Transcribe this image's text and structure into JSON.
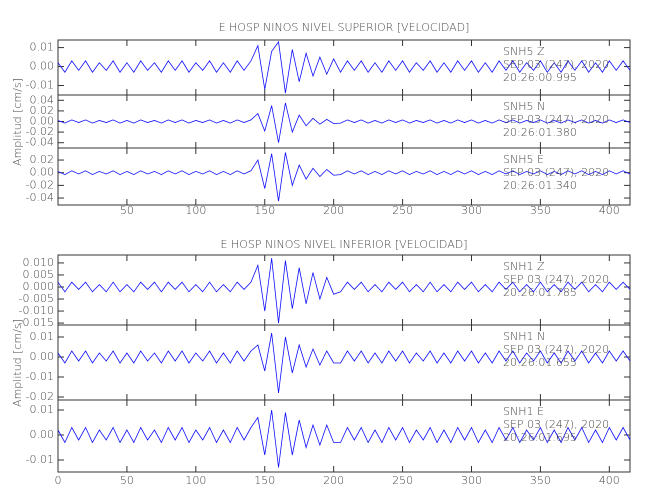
{
  "chart_data": [
    {
      "type": "line",
      "title": "E HOSP NINOS NIVEL SUPERIOR [VELOCIDAD]",
      "y_label": "Amplitud [cm/s]",
      "x": [
        0,
        5,
        10,
        15,
        20,
        25,
        30,
        35,
        40,
        45,
        50,
        55,
        60,
        65,
        70,
        75,
        80,
        85,
        90,
        95,
        100,
        105,
        110,
        115,
        120,
        125,
        130,
        135,
        140,
        145,
        150,
        155,
        160,
        165,
        170,
        175,
        180,
        185,
        190,
        195,
        200,
        205,
        210,
        215,
        220,
        225,
        230,
        235,
        240,
        245,
        250,
        255,
        260,
        265,
        270,
        275,
        280,
        285,
        290,
        295,
        300,
        305,
        310,
        315,
        320,
        325,
        330,
        335,
        340,
        345,
        350,
        355,
        360,
        365,
        370,
        375,
        380,
        385,
        390,
        395,
        400,
        405,
        410,
        415
      ],
      "xlim": [
        0,
        415
      ],
      "xticks": [
        50,
        100,
        150,
        200,
        250,
        300,
        350,
        400
      ],
      "panels": [
        {
          "labels": [
            "SNH5   Z",
            "SEP 03 (247), 2020",
            "20:26:00.995"
          ],
          "color": "#1010ff",
          "ylim": [
            -0.015,
            0.014
          ],
          "yticks": [
            0.01,
            {
              "value": 0,
              "label": "0.00"
            },
            -0.01
          ],
          "values": [
            0.002,
            -0.003,
            0.003,
            -0.002,
            0.003,
            -0.003,
            0.002,
            -0.002,
            0.003,
            -0.003,
            0.002,
            -0.003,
            0.003,
            -0.002,
            0.002,
            -0.003,
            0.003,
            -0.002,
            0.003,
            -0.003,
            0.002,
            -0.002,
            0.003,
            -0.003,
            0.002,
            -0.003,
            0.003,
            -0.002,
            0.003,
            0.011,
            -0.012,
            0.008,
            0.013,
            -0.014,
            0.009,
            -0.008,
            0.007,
            -0.005,
            0.005,
            -0.004,
            0.004,
            -0.003,
            0.003,
            -0.002,
            0.003,
            -0.003,
            0.002,
            -0.003,
            0.003,
            -0.002,
            0.003,
            -0.003,
            0.002,
            -0.002,
            0.003,
            -0.003,
            0.002,
            -0.003,
            0.003,
            -0.002,
            0.003,
            -0.003,
            0.002,
            -0.003,
            0.003,
            -0.002,
            0.003,
            -0.003,
            0.002,
            -0.002,
            0.003,
            -0.003,
            0.002,
            -0.003,
            0.003,
            -0.002,
            0.003,
            -0.003,
            0.002,
            -0.003,
            0.003,
            -0.002,
            0.003,
            -0.002
          ]
        },
        {
          "labels": [
            "SNH5   N",
            "SEP 03 (247), 2020",
            "20:26:01.380"
          ],
          "color": "#1010ff",
          "ylim": [
            -0.05,
            0.05
          ],
          "yticks": [
            0.04,
            0.02,
            {
              "value": 0,
              "label": "0.00"
            },
            -0.02,
            -0.04
          ],
          "values": [
            0.002,
            -0.003,
            0.003,
            -0.002,
            0.003,
            -0.003,
            0.002,
            -0.002,
            0.003,
            -0.003,
            0.002,
            -0.003,
            0.003,
            -0.002,
            0.002,
            -0.003,
            0.003,
            -0.002,
            0.003,
            -0.003,
            0.002,
            -0.002,
            0.003,
            -0.003,
            0.002,
            -0.003,
            0.003,
            -0.002,
            0.003,
            0.015,
            -0.018,
            0.03,
            -0.04,
            0.035,
            -0.02,
            0.012,
            -0.008,
            0.006,
            -0.005,
            0.004,
            -0.004,
            -0.003,
            0.003,
            -0.002,
            0.003,
            -0.003,
            0.002,
            -0.003,
            0.003,
            -0.002,
            0.003,
            -0.003,
            0.002,
            -0.002,
            0.003,
            -0.003,
            0.002,
            -0.003,
            0.003,
            -0.002,
            0.003,
            -0.003,
            0.002,
            -0.003,
            0.003,
            -0.002,
            0.003,
            -0.003,
            0.002,
            -0.002,
            0.003,
            -0.003,
            0.002,
            -0.003,
            0.003,
            -0.002,
            0.003,
            -0.003,
            0.002,
            -0.003,
            0.003,
            -0.002,
            0.003,
            -0.002
          ]
        },
        {
          "labels": [
            "SNH5   E",
            "SEP 03 (247), 2020",
            "20:26:01.340"
          ],
          "color": "#1010ff",
          "ylim": [
            -0.051,
            0.039
          ],
          "yticks": [
            0.02,
            {
              "value": 0,
              "label": "0.00"
            },
            -0.02,
            -0.04
          ],
          "values": [
            0.002,
            -0.003,
            0.003,
            -0.002,
            0.003,
            -0.003,
            0.002,
            -0.002,
            0.003,
            -0.003,
            0.002,
            -0.003,
            0.003,
            -0.002,
            0.002,
            -0.003,
            0.003,
            -0.002,
            0.003,
            -0.003,
            0.002,
            -0.002,
            0.003,
            -0.003,
            0.002,
            -0.003,
            0.003,
            -0.002,
            0.003,
            0.02,
            -0.025,
            0.03,
            -0.045,
            0.032,
            -0.02,
            0.012,
            -0.01,
            0.007,
            -0.006,
            0.005,
            -0.004,
            -0.003,
            0.003,
            -0.002,
            0.003,
            -0.003,
            0.002,
            -0.003,
            0.003,
            -0.002,
            0.003,
            -0.003,
            0.002,
            -0.002,
            0.003,
            -0.003,
            0.002,
            -0.003,
            0.003,
            -0.002,
            0.003,
            -0.003,
            0.002,
            -0.003,
            0.003,
            -0.002,
            0.003,
            -0.003,
            0.002,
            -0.002,
            0.003,
            -0.003,
            0.002,
            -0.003,
            0.003,
            -0.002,
            0.003,
            -0.003,
            0.002,
            -0.003,
            0.003,
            -0.002,
            0.003,
            -0.002
          ]
        }
      ]
    },
    {
      "type": "line",
      "title": "E HOSP NINOS NIVEL INFERIOR [VELOCIDAD]",
      "y_label": "Amplitud [cm/s]",
      "x": [
        0,
        5,
        10,
        15,
        20,
        25,
        30,
        35,
        40,
        45,
        50,
        55,
        60,
        65,
        70,
        75,
        80,
        85,
        90,
        95,
        100,
        105,
        110,
        115,
        120,
        125,
        130,
        135,
        140,
        145,
        150,
        155,
        160,
        165,
        170,
        175,
        180,
        185,
        190,
        195,
        200,
        205,
        210,
        215,
        220,
        225,
        230,
        235,
        240,
        245,
        250,
        255,
        260,
        265,
        270,
        275,
        280,
        285,
        290,
        295,
        300,
        305,
        310,
        315,
        320,
        325,
        330,
        335,
        340,
        345,
        350,
        355,
        360,
        365,
        370,
        375,
        380,
        385,
        390,
        395,
        400,
        405,
        410,
        415
      ],
      "xlim": [
        0,
        415
      ],
      "xticks": [
        0,
        50,
        100,
        150,
        200,
        250,
        300,
        350,
        400
      ],
      "panels": [
        {
          "labels": [
            "SNH1   Z",
            "SEP 03 (247), 2020",
            "20:26:01.785"
          ],
          "color": "#1010ff",
          "ylim": [
            -0.0158,
            0.0133
          ],
          "yticks": [
            {
              "value": 0.01,
              "label": "0.010"
            },
            0.005,
            {
              "value": 0,
              "label": "0.000"
            },
            -0.005,
            {
              "value": -0.01,
              "label": "-0.010"
            },
            -0.015
          ],
          "values": [
            0.002,
            -0.002,
            0.002,
            -0.001,
            0.002,
            -0.002,
            0.001,
            -0.002,
            0.002,
            -0.002,
            0.001,
            -0.002,
            0.002,
            -0.001,
            0.002,
            -0.002,
            0.002,
            -0.001,
            0.002,
            -0.002,
            0.001,
            -0.002,
            0.002,
            -0.002,
            0.001,
            -0.002,
            0.002,
            -0.001,
            0.002,
            0.009,
            -0.01,
            0.012,
            -0.015,
            0.011,
            -0.009,
            0.008,
            -0.007,
            0.006,
            -0.005,
            0.004,
            -0.003,
            -0.002,
            0.002,
            -0.001,
            0.002,
            -0.002,
            0.001,
            -0.002,
            0.002,
            -0.001,
            0.002,
            -0.002,
            0.001,
            -0.002,
            0.002,
            -0.002,
            0.001,
            -0.002,
            0.002,
            -0.001,
            0.002,
            -0.002,
            0.001,
            -0.002,
            0.002,
            -0.001,
            0.002,
            -0.002,
            0.001,
            -0.002,
            0.002,
            -0.002,
            0.001,
            -0.002,
            0.002,
            -0.001,
            0.002,
            -0.002,
            0.001,
            -0.002,
            0.002,
            -0.001,
            0.002,
            -0.001
          ]
        },
        {
          "labels": [
            "SNH1   N",
            "SEP 03 (247), 2020",
            "20:26:01.655"
          ],
          "color": "#1010ff",
          "ylim": [
            -0.0215,
            0.016
          ],
          "yticks": [
            0.01,
            {
              "value": 0,
              "label": "0.00"
            },
            -0.01,
            -0.02
          ],
          "values": [
            0.002,
            -0.003,
            0.003,
            -0.002,
            0.003,
            -0.003,
            0.002,
            -0.002,
            0.003,
            -0.003,
            0.002,
            -0.003,
            0.003,
            -0.002,
            0.002,
            -0.003,
            0.003,
            -0.002,
            0.003,
            -0.003,
            0.002,
            -0.002,
            0.003,
            -0.003,
            0.002,
            -0.003,
            0.003,
            -0.002,
            0.003,
            0.006,
            -0.007,
            0.012,
            -0.018,
            0.01,
            -0.008,
            0.006,
            -0.005,
            0.004,
            -0.004,
            0.003,
            -0.003,
            -0.003,
            0.003,
            -0.002,
            0.003,
            -0.003,
            0.002,
            -0.003,
            0.003,
            -0.002,
            0.003,
            -0.003,
            0.002,
            -0.002,
            0.003,
            -0.003,
            0.002,
            -0.003,
            0.003,
            -0.002,
            0.003,
            -0.003,
            0.002,
            -0.003,
            0.003,
            -0.002,
            0.003,
            -0.003,
            0.002,
            -0.002,
            0.003,
            -0.003,
            0.002,
            -0.003,
            0.003,
            -0.002,
            0.003,
            -0.003,
            0.002,
            -0.003,
            0.003,
            -0.002,
            0.003,
            -0.002
          ]
        },
        {
          "labels": [
            "SNH1   E",
            "SEP 03 (247), 2020",
            "20:26:01.695"
          ],
          "color": "#1010ff",
          "ylim": [
            -0.0148,
            0.014
          ],
          "yticks": [
            0.01,
            {
              "value": 0,
              "label": "0.00"
            },
            -0.01
          ],
          "values": [
            0.002,
            -0.003,
            0.003,
            -0.002,
            0.003,
            -0.003,
            0.002,
            -0.002,
            0.003,
            -0.003,
            0.002,
            -0.003,
            0.003,
            -0.002,
            0.002,
            -0.003,
            0.003,
            -0.002,
            0.003,
            -0.003,
            0.002,
            -0.002,
            0.003,
            -0.003,
            0.002,
            -0.003,
            0.003,
            -0.002,
            0.003,
            0.007,
            -0.008,
            0.01,
            -0.013,
            0.009,
            -0.008,
            0.006,
            -0.005,
            0.004,
            -0.004,
            0.004,
            -0.003,
            -0.003,
            0.003,
            -0.002,
            0.003,
            -0.003,
            0.002,
            -0.003,
            0.003,
            -0.002,
            0.003,
            -0.003,
            0.002,
            -0.002,
            0.003,
            -0.003,
            0.002,
            -0.003,
            0.003,
            -0.002,
            0.003,
            -0.003,
            0.002,
            -0.003,
            0.003,
            -0.002,
            0.003,
            -0.003,
            0.002,
            -0.002,
            0.003,
            -0.003,
            0.002,
            -0.003,
            0.003,
            -0.002,
            0.003,
            -0.003,
            0.002,
            -0.003,
            0.003,
            -0.002,
            0.003,
            -0.002
          ]
        }
      ]
    }
  ]
}
